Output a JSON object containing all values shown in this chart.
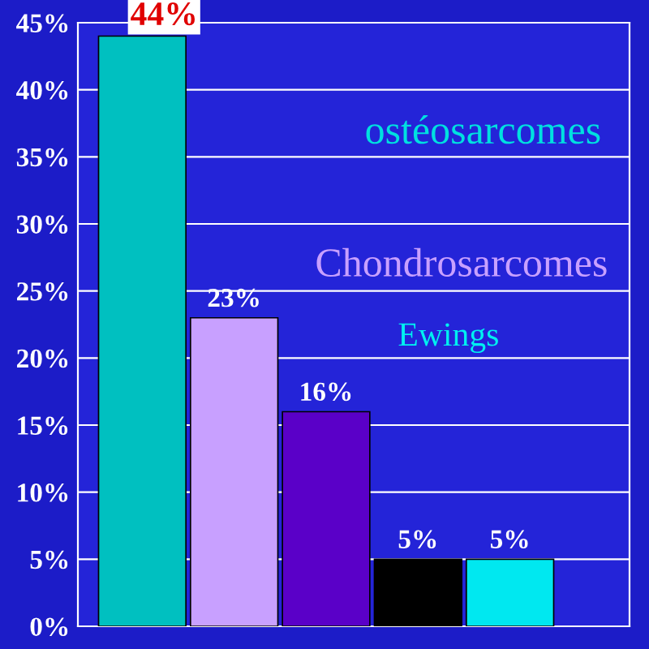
{
  "chart_data": {
    "type": "bar",
    "categories": [
      null,
      null,
      null,
      null,
      null
    ],
    "values": [
      44,
      23,
      16,
      5,
      5
    ],
    "colors": [
      "#00c0c0",
      "#c8a0ff",
      "#5a00c8",
      "#000000",
      "#00e8f0"
    ],
    "value_labels": [
      "44%",
      "23%",
      "16%",
      "5%",
      "5%"
    ],
    "ylim": [
      0,
      45
    ],
    "yticks": [
      {
        "value": 0,
        "label": "0%"
      },
      {
        "value": 5,
        "label": "5%"
      },
      {
        "value": 10,
        "label": "10%"
      },
      {
        "value": 15,
        "label": "15%"
      },
      {
        "value": 20,
        "label": "20%"
      },
      {
        "value": 25,
        "label": "25%"
      },
      {
        "value": 30,
        "label": "30%"
      },
      {
        "value": 35,
        "label": "35%"
      },
      {
        "value": 40,
        "label": "40%"
      },
      {
        "value": 45,
        "label": "45%"
      }
    ],
    "grid": "y",
    "annotations": [
      "ostéosarcomes",
      "Chondrosarcomes",
      "Ewings"
    ]
  }
}
